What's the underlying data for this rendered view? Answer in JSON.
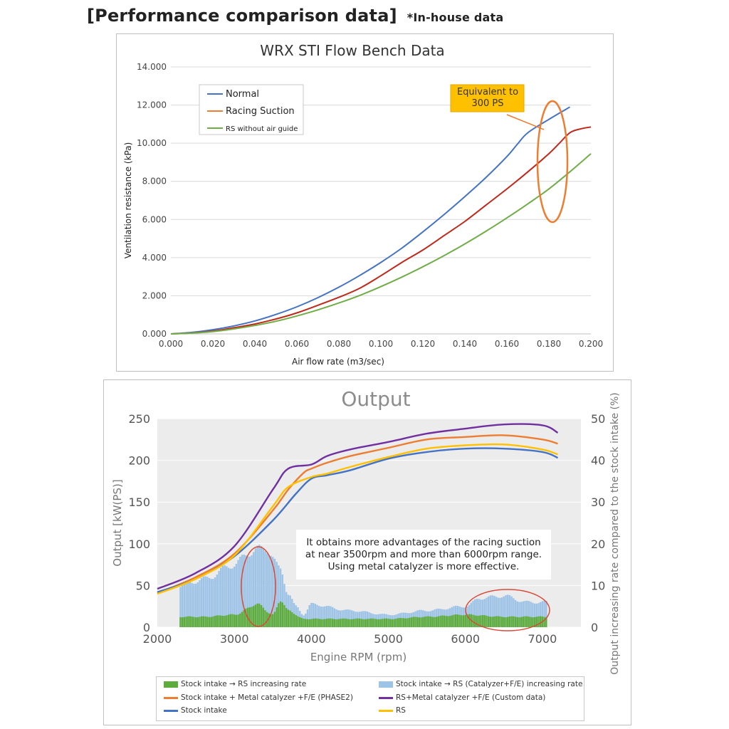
{
  "heading": {
    "title": "[Performance comparison data]",
    "note": "*In-house data"
  },
  "colors": {
    "blue": "#4472C4",
    "orange": "#ED7D31",
    "red": "#C0281B",
    "green": "#70AD47",
    "purple": "#7030A0",
    "gold": "#FFC000",
    "lightblue": "#9DC3E6",
    "barGreen": "#5EAD3C",
    "callout": "#FFC000",
    "ellipseOrange": "#ED7D31",
    "ellipseRed": "#D94A3A"
  },
  "chart_data": [
    {
      "type": "line",
      "title": "WRX STI  Flow Bench Data",
      "xlabel": "Air flow rate (m3/sec)",
      "ylabel": "Ventilation resistance (kPa)",
      "xlim": [
        0,
        0.2
      ],
      "ylim": [
        0,
        14
      ],
      "xticks": [
        "0.000",
        "0.020",
        "0.040",
        "0.060",
        "0.080",
        "0.100",
        "0.120",
        "0.140",
        "0.160",
        "0.180",
        "0.200"
      ],
      "yticks": [
        "0.000",
        "2.000",
        "4.000",
        "6.000",
        "8.000",
        "10.000",
        "12.000",
        "14.000"
      ],
      "grid": true,
      "legend_position": "top-left",
      "legend": [
        "Normal",
        "Racing Suction",
        "RS without air guide"
      ],
      "callout": "Equivalent to\n300 PS",
      "series": [
        {
          "name": "Normal",
          "color": "#4472C4",
          "x": [
            0,
            0.01,
            0.02,
            0.03,
            0.04,
            0.05,
            0.06,
            0.07,
            0.08,
            0.09,
            0.1,
            0.11,
            0.12,
            0.13,
            0.14,
            0.15,
            0.16,
            0.165,
            0.17,
            0.18,
            0.19
          ],
          "y": [
            0,
            0.08,
            0.22,
            0.42,
            0.68,
            1.02,
            1.42,
            1.9,
            2.45,
            3.07,
            3.75,
            4.5,
            5.35,
            6.25,
            7.2,
            8.2,
            9.3,
            9.95,
            10.55,
            11.25,
            11.9
          ]
        },
        {
          "name": "",
          "color": "#C0281B",
          "x": [
            0,
            0.01,
            0.02,
            0.03,
            0.04,
            0.05,
            0.06,
            0.07,
            0.08,
            0.09,
            0.1,
            0.11,
            0.12,
            0.13,
            0.14,
            0.15,
            0.16,
            0.17,
            0.18,
            0.185,
            0.19,
            0.195,
            0.2
          ],
          "y": [
            0,
            0.05,
            0.15,
            0.32,
            0.52,
            0.78,
            1.1,
            1.5,
            1.92,
            2.4,
            3.05,
            3.75,
            4.4,
            5.15,
            5.9,
            6.75,
            7.6,
            8.5,
            9.45,
            10.0,
            10.55,
            10.75,
            10.85
          ]
        },
        {
          "name": "",
          "color": "#70AD47",
          "x": [
            0,
            0.01,
            0.02,
            0.03,
            0.04,
            0.05,
            0.06,
            0.07,
            0.08,
            0.09,
            0.1,
            0.11,
            0.12,
            0.13,
            0.14,
            0.15,
            0.16,
            0.17,
            0.18,
            0.19,
            0.2
          ],
          "y": [
            0,
            0.04,
            0.12,
            0.26,
            0.44,
            0.66,
            0.94,
            1.26,
            1.62,
            2.02,
            2.48,
            2.98,
            3.52,
            4.1,
            4.72,
            5.38,
            6.08,
            6.82,
            7.6,
            8.5,
            9.45
          ]
        }
      ]
    },
    {
      "type": "line",
      "title": "Output",
      "xlabel": "Engine RPM (rpm)",
      "ylabel": "Output [kW(PS)]",
      "y2label": "Output increasing rate compared to the stock intake (%)",
      "xlim": [
        2000,
        7500
      ],
      "ylim": [
        0,
        250
      ],
      "y2lim": [
        0,
        50
      ],
      "xticks": [
        "2000",
        "3000",
        "4000",
        "5000",
        "6000",
        "7000"
      ],
      "yticks": [
        "0",
        "50",
        "100",
        "150",
        "200",
        "250"
      ],
      "y2ticks": [
        "0",
        "10",
        "20",
        "30",
        "40",
        "50"
      ],
      "legend_position": "bottom",
      "annotation": "It obtains more advantages of the racing suction\nat near 3500rpm and more than 6000rpm range.\nUsing metal catalyzer is more effective.",
      "series": [
        {
          "name": "Stock intake + Metal catalyzer +F/E (PHASE2)",
          "color": "#ED7D31",
          "x": [
            2000,
            2500,
            3000,
            3500,
            3700,
            3900,
            4000,
            4200,
            4500,
            5000,
            5500,
            6000,
            6500,
            7000,
            7200
          ],
          "y": [
            41,
            60,
            88,
            140,
            165,
            185,
            190,
            197,
            205,
            215,
            225,
            228,
            230,
            225,
            220
          ]
        },
        {
          "name": "RS+Metal catalyzer +F/E (Custom data)",
          "color": "#7030A0",
          "x": [
            2000,
            2500,
            3000,
            3500,
            3700,
            4000,
            4200,
            4500,
            5000,
            5500,
            6000,
            6500,
            7000,
            7200
          ],
          "y": [
            46,
            65,
            97,
            165,
            190,
            195,
            205,
            213,
            222,
            232,
            238,
            243,
            242,
            233
          ]
        },
        {
          "name": "Stock intake",
          "color": "#4472C4",
          "x": [
            2000,
            2500,
            3000,
            3500,
            3800,
            4000,
            4200,
            4500,
            5000,
            5500,
            6000,
            6500,
            7000,
            7200
          ],
          "y": [
            42,
            58,
            85,
            128,
            160,
            178,
            182,
            188,
            202,
            210,
            214,
            214,
            210,
            203
          ]
        },
        {
          "name": "RS",
          "color": "#FFC000",
          "x": [
            2000,
            2500,
            3000,
            3500,
            3700,
            4000,
            4200,
            4500,
            5000,
            5500,
            6000,
            6500,
            7000,
            7200
          ],
          "y": [
            40,
            58,
            86,
            145,
            168,
            180,
            184,
            192,
            204,
            214,
            218,
            219,
            213,
            207
          ]
        },
        {
          "name": "Stock intake → RS increasing rate",
          "color": "#5EAD3C",
          "axis": "right",
          "kind": "bar",
          "x": [
            2300,
            2600,
            3000,
            3300,
            3500,
            3600,
            3700,
            3900,
            4000,
            4500,
            5000,
            5500,
            6000,
            6500,
            7000
          ],
          "y": [
            2.5,
            2.5,
            3,
            5.5,
            3,
            6.5,
            4,
            2,
            2,
            2,
            2,
            2.5,
            3,
            2.5,
            2.5
          ]
        },
        {
          "name": "Stock intake → RS (Catalyzer+F/E) increasing rate",
          "color": "#9DC3E6",
          "axis": "right",
          "kind": "bar",
          "x": [
            2300,
            2600,
            3000,
            3200,
            3400,
            3600,
            3700,
            3800,
            3900,
            4000,
            4500,
            5000,
            5500,
            6000,
            6200,
            6500,
            6800,
            7000
          ],
          "y": [
            10,
            11.5,
            15,
            18,
            19,
            14,
            8,
            5,
            3,
            5.5,
            4,
            3,
            4,
            5,
            7,
            7.5,
            6,
            6
          ]
        }
      ]
    }
  ]
}
